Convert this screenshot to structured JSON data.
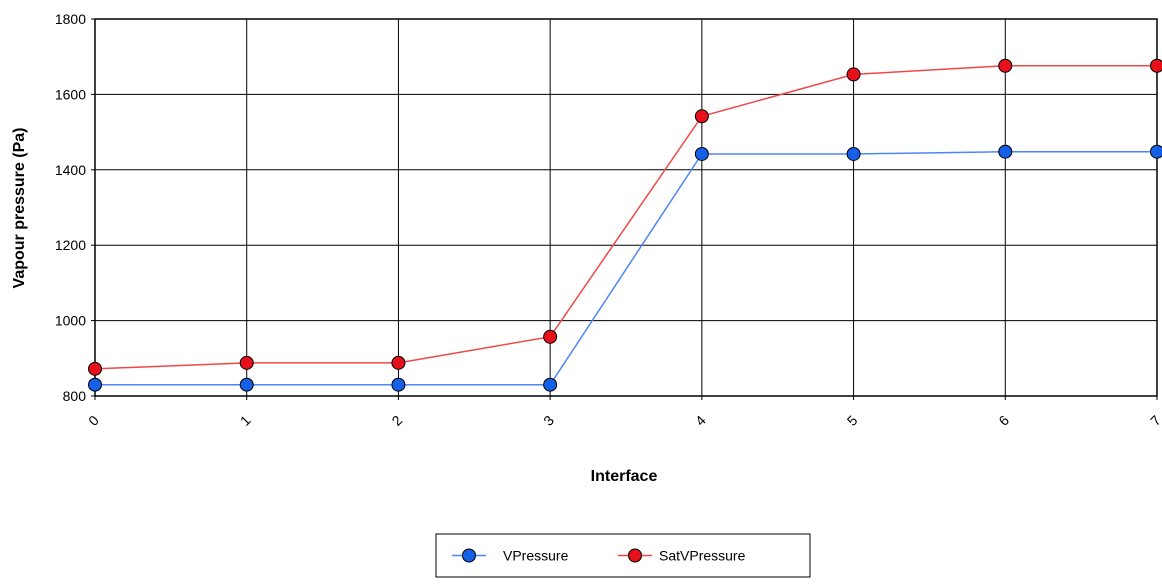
{
  "chart_data": {
    "type": "line",
    "x": [
      0,
      1,
      2,
      3,
      4,
      5,
      6,
      7
    ],
    "x_tick_labels": [
      "0",
      "1",
      "2",
      "3",
      "4",
      "5",
      "6",
      "7"
    ],
    "xlabel": "Interface",
    "ylabel": "Vapour pressure (Pa)",
    "ylim": [
      800,
      1800
    ],
    "y_ticks": [
      800,
      1000,
      1200,
      1400,
      1600,
      1800
    ],
    "y_tick_labels": [
      "800",
      "1000",
      "1200",
      "1400",
      "1600",
      "1800"
    ],
    "grid": true,
    "legend_position": "bottom-center",
    "series": [
      {
        "name": "VPressure",
        "line_color": "#4f86f7",
        "marker_color": "#1560e8",
        "values": [
          830,
          830,
          830,
          830,
          1442,
          1442,
          1448,
          1448
        ]
      },
      {
        "name": "SatVPressure",
        "line_color": "#f04848",
        "marker_color": "#e8101a",
        "values": [
          872,
          888,
          888,
          957,
          1542,
          1653,
          1676,
          1676
        ]
      }
    ]
  }
}
